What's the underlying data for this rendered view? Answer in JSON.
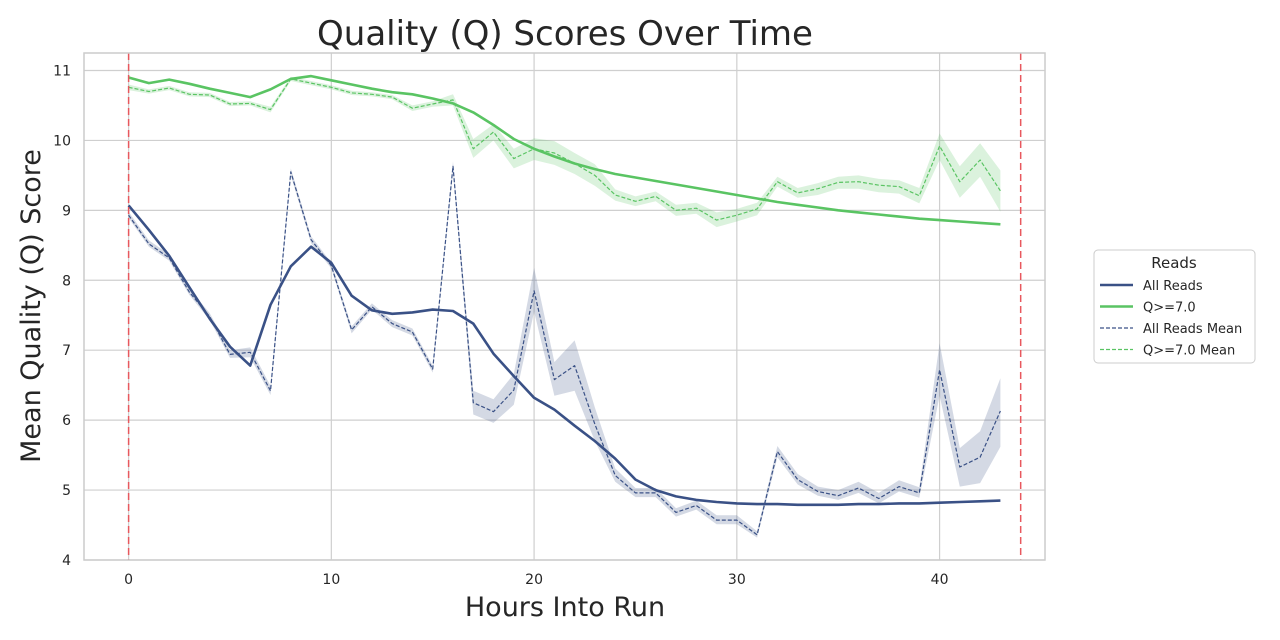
{
  "chart_data": {
    "type": "line",
    "title": "Quality (Q) Scores Over Time",
    "xlabel": "Hours Into Run",
    "ylabel": "Mean Quality (Q) Score",
    "xlim": [
      -2.2,
      45.2
    ],
    "ylim": [
      4,
      11.25
    ],
    "xticks": [
      0,
      10,
      20,
      30,
      40
    ],
    "yticks": [
      4,
      5,
      6,
      7,
      8,
      9,
      10,
      11
    ],
    "grid": true,
    "legend": {
      "title": "Reads",
      "placement": "right",
      "entries": [
        "All Reads",
        "Q>=7.0",
        "All Reads Mean",
        "Q>=7.0 Mean"
      ]
    },
    "vlines": [
      {
        "x": 0,
        "color": "#e8585e",
        "style": "dashed"
      },
      {
        "x": 44,
        "color": "#e8585e",
        "style": "dashed"
      }
    ],
    "x": [
      0,
      1,
      2,
      3,
      4,
      5,
      6,
      7,
      8,
      9,
      10,
      11,
      12,
      13,
      14,
      15,
      16,
      17,
      18,
      19,
      20,
      21,
      22,
      23,
      24,
      25,
      26,
      27,
      28,
      29,
      30,
      31,
      32,
      33,
      34,
      35,
      36,
      37,
      38,
      39,
      40,
      41,
      42,
      43
    ],
    "series": [
      {
        "name": "All Reads",
        "style": "solid",
        "color": "#3a5186",
        "values": [
          9.07,
          8.72,
          8.35,
          7.9,
          7.45,
          7.05,
          6.78,
          7.65,
          8.2,
          8.48,
          8.25,
          7.78,
          7.57,
          7.52,
          7.54,
          7.58,
          7.56,
          7.38,
          6.95,
          6.63,
          6.32,
          6.15,
          5.92,
          5.7,
          5.45,
          5.15,
          5.0,
          4.91,
          4.86,
          4.83,
          4.81,
          4.8,
          4.8,
          4.79,
          4.79,
          4.79,
          4.8,
          4.8,
          4.81,
          4.81,
          4.82,
          4.83,
          4.84,
          4.85
        ]
      },
      {
        "name": "Q>=7.0",
        "style": "solid",
        "color": "#5ac463",
        "values": [
          10.9,
          10.82,
          10.87,
          10.81,
          10.74,
          10.68,
          10.62,
          10.73,
          10.88,
          10.92,
          10.86,
          10.8,
          10.74,
          10.69,
          10.66,
          10.6,
          10.53,
          10.4,
          10.22,
          10.02,
          9.88,
          9.77,
          9.67,
          9.59,
          9.52,
          9.47,
          9.42,
          9.37,
          9.32,
          9.27,
          9.22,
          9.17,
          9.12,
          9.08,
          9.04,
          9.0,
          8.97,
          8.94,
          8.91,
          8.88,
          8.86,
          8.84,
          8.82,
          8.8
        ]
      },
      {
        "name": "All Reads Mean",
        "style": "dashed",
        "color": "#3a5186",
        "values": [
          8.93,
          8.52,
          8.32,
          7.83,
          7.48,
          6.94,
          6.97,
          6.42,
          9.55,
          8.58,
          8.21,
          7.29,
          7.62,
          7.38,
          7.26,
          6.73,
          9.63,
          6.25,
          6.12,
          6.43,
          7.85,
          6.58,
          6.78,
          5.94,
          5.21,
          4.96,
          4.96,
          4.68,
          4.78,
          4.57,
          4.57,
          4.36,
          5.55,
          5.15,
          4.98,
          4.92,
          5.03,
          4.88,
          5.05,
          4.96,
          6.72,
          5.33,
          5.47,
          6.13
        ],
        "band_low": [
          8.89,
          8.48,
          8.28,
          7.79,
          7.43,
          6.89,
          6.9,
          6.36,
          9.5,
          8.53,
          8.17,
          7.24,
          7.58,
          7.33,
          7.21,
          6.68,
          9.56,
          6.08,
          5.96,
          6.22,
          7.55,
          6.35,
          6.42,
          5.7,
          5.12,
          4.9,
          4.9,
          4.62,
          4.72,
          4.51,
          4.51,
          4.32,
          5.47,
          5.08,
          4.92,
          4.86,
          4.96,
          4.81,
          4.98,
          4.89,
          6.35,
          5.05,
          5.1,
          5.62
        ],
        "band_high": [
          8.98,
          8.57,
          8.37,
          7.88,
          7.53,
          7.0,
          7.04,
          6.49,
          9.6,
          8.63,
          8.25,
          7.34,
          7.67,
          7.43,
          7.31,
          6.78,
          9.7,
          6.42,
          6.3,
          6.66,
          8.18,
          6.83,
          7.14,
          6.18,
          5.31,
          5.03,
          5.03,
          4.74,
          4.85,
          4.64,
          4.64,
          4.41,
          5.63,
          5.23,
          5.05,
          5.0,
          5.12,
          4.96,
          5.14,
          5.04,
          7.1,
          5.6,
          5.84,
          6.6
        ]
      },
      {
        "name": "Q>=7.0 Mean",
        "style": "dashed",
        "color": "#5ac463",
        "values": [
          10.76,
          10.7,
          10.75,
          10.66,
          10.65,
          10.52,
          10.53,
          10.44,
          10.88,
          10.82,
          10.76,
          10.68,
          10.66,
          10.62,
          10.46,
          10.52,
          10.58,
          9.88,
          10.12,
          9.74,
          9.88,
          9.82,
          9.67,
          9.5,
          9.22,
          9.13,
          9.2,
          9.0,
          9.03,
          8.86,
          8.93,
          9.02,
          9.41,
          9.25,
          9.31,
          9.4,
          9.41,
          9.36,
          9.34,
          9.21,
          9.92,
          9.41,
          9.72,
          9.28
        ],
        "band_low": [
          10.72,
          10.67,
          10.72,
          10.63,
          10.62,
          10.49,
          10.5,
          10.4,
          10.85,
          10.79,
          10.73,
          10.65,
          10.63,
          10.59,
          10.42,
          10.48,
          10.5,
          9.75,
          10.0,
          9.6,
          9.72,
          9.65,
          9.52,
          9.35,
          9.14,
          9.06,
          9.13,
          8.92,
          8.95,
          8.76,
          8.84,
          8.93,
          9.34,
          9.18,
          9.22,
          9.31,
          9.31,
          9.26,
          9.24,
          9.1,
          9.72,
          9.18,
          9.48,
          8.98
        ],
        "band_high": [
          10.8,
          10.73,
          10.78,
          10.69,
          10.68,
          10.55,
          10.56,
          10.48,
          10.91,
          10.85,
          10.79,
          10.71,
          10.69,
          10.65,
          10.5,
          10.56,
          10.66,
          10.02,
          10.23,
          9.88,
          10.03,
          9.99,
          9.82,
          9.66,
          9.3,
          9.2,
          9.27,
          9.08,
          9.11,
          8.97,
          9.02,
          9.11,
          9.48,
          9.32,
          9.39,
          9.48,
          9.5,
          9.45,
          9.43,
          9.32,
          10.1,
          9.63,
          9.96,
          9.57
        ]
      }
    ]
  }
}
